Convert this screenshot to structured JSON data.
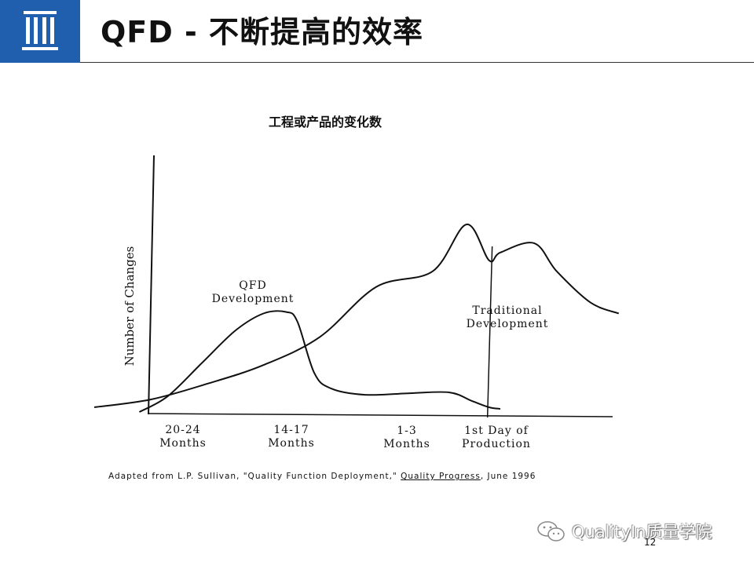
{
  "slide": {
    "title": "QFD - 不断提高的效率",
    "page_number": "12"
  },
  "watermark": {
    "text": "QualityIn质量学院",
    "icon": "wechat-icon"
  },
  "colors": {
    "header_blue": "#1f5fae",
    "ink": "#111111"
  },
  "chart_data": {
    "type": "line",
    "title": "工程或产品的变化数",
    "ylabel": "Number of Changes",
    "xlabel": "",
    "x_tick_labels": [
      {
        "line1": "20-24",
        "line2": "Months"
      },
      {
        "line1": "14-17",
        "line2": "Months"
      },
      {
        "line1": "1-3",
        "line2": "Months"
      },
      {
        "line1": "1st Day of",
        "line2": "Production"
      }
    ],
    "x_tick_positions": [
      1,
      2,
      3,
      4
    ],
    "xlim": [
      0.5,
      5.2
    ],
    "ylim": [
      0,
      10
    ],
    "grid": false,
    "legend": "none",
    "series": [
      {
        "name": "QFD Development",
        "label_line1": "QFD",
        "label_line2": "Development",
        "x": [
          0.9,
          1.15,
          1.45,
          1.75,
          2.0,
          2.2,
          2.3,
          2.45,
          2.6,
          2.9,
          3.3,
          3.65,
          3.85,
          4.0,
          4.1
        ],
        "y": [
          0.0,
          1.0,
          3.1,
          5.2,
          6.3,
          6.4,
          5.8,
          2.5,
          1.5,
          1.1,
          1.2,
          1.25,
          0.7,
          0.3,
          0.2
        ]
      },
      {
        "name": "Traditional Development",
        "label_line1": "Traditional",
        "label_line2": "Development",
        "x": [
          0.5,
          1.0,
          1.5,
          2.0,
          2.5,
          3.0,
          3.5,
          3.8,
          4.0,
          4.1,
          4.4,
          4.6,
          4.9,
          5.15
        ],
        "y": [
          0.3,
          0.8,
          1.8,
          3.0,
          4.8,
          8.0,
          9.0,
          12.0,
          9.7,
          10.2,
          10.8,
          9.0,
          7.0,
          6.3
        ]
      }
    ],
    "source_note": {
      "prefix": "Adapted from L.P. Sullivan, \"Quality Function Deployment,\" ",
      "underlined": "Quality Progress",
      "suffix": ", June 1996"
    }
  }
}
